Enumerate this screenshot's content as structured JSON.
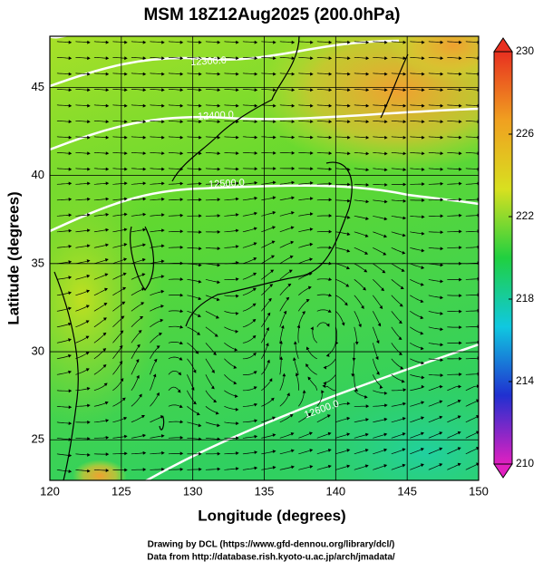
{
  "chart_data": {
    "type": "map",
    "title": "MSM 18Z12Aug2025 (200.0hPa)",
    "x_label": "Longitude (degrees)",
    "y_label": "Latitude  (degrees)",
    "xlim": [
      120,
      150
    ],
    "xticks": [
      120,
      125,
      130,
      135,
      140,
      145,
      150
    ],
    "ylim": [
      22.7,
      47.9
    ],
    "yticks": [
      25,
      30,
      35,
      40,
      45
    ],
    "contour_labels": [
      "12300.0",
      "12400.0",
      "12500.0",
      "12600.0"
    ],
    "colorbar": {
      "lim": [
        210,
        230
      ],
      "ticks": [
        210,
        214,
        218,
        222,
        226,
        230
      ],
      "colors": [
        "#e020c0",
        "#2030d0",
        "#10c8e0",
        "#20d040",
        "#d8e020",
        "#f0a020",
        "#e83020"
      ]
    },
    "footer": [
      "Drawing by DCL (https://www.gfd-dennou.org/library/dcl/)",
      "Data from http://database.rish.kyoto-u.ac.jp/arch/jmadata/"
    ]
  }
}
